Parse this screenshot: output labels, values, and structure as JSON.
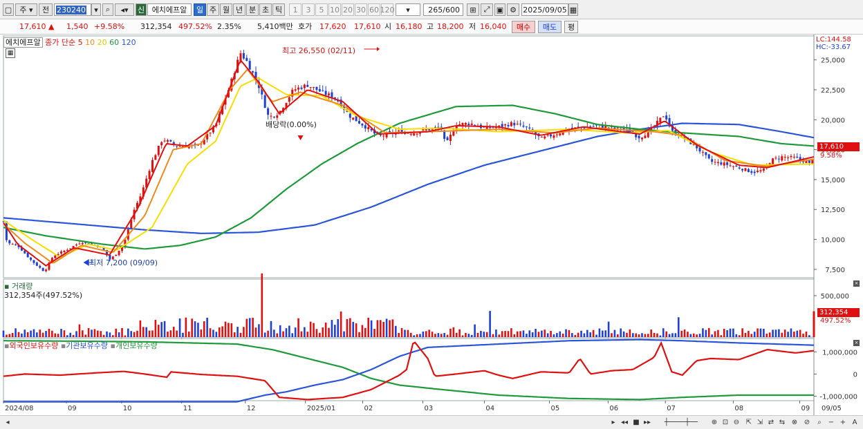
{
  "toolbar": {
    "market_tab": "주",
    "prev_tab": "전",
    "stock_code": "230240",
    "stock_name": "에치에프알",
    "credit_badge": "신",
    "periods": [
      "일",
      "주",
      "월",
      "년",
      "분",
      "초",
      "틱"
    ],
    "active_period": "일",
    "intervals": [
      "1",
      "3",
      "5",
      "10",
      "20",
      "30",
      "60",
      "120"
    ],
    "count": "265",
    "count_total": "/600",
    "date": "2025/09/05"
  },
  "quote": {
    "price": "17,610",
    "change": "1,540",
    "change_pct": "+9.58%",
    "volume": "312,354",
    "volume_ratio": "497.52%",
    "turnover": "2.35%",
    "amount": "5,410백만",
    "hoga_label": "호가",
    "ask": "17,620",
    "bid": "17,610",
    "open_label": "시",
    "open": "16,180",
    "high_label": "고",
    "high": "18,200",
    "low_label": "저",
    "low": "16,040",
    "buy_button": "매수",
    "sell_button": "매도",
    "eval_button": "평"
  },
  "price_panel": {
    "stock_name": "에치에프알",
    "ma_label": "종가 단순",
    "ma_periods": [
      "5",
      "10",
      "20",
      "60",
      "120"
    ],
    "colors": {
      "ma5": "#e01010",
      "ma10": "#f08a1c",
      "ma20": "#f5df00",
      "ma60": "#1f9a3a",
      "ma120": "#2b55d8"
    },
    "lc": "LC:144.58",
    "hc": "HC:-33.67",
    "high_annotation": "최고 26,550 (02/11)",
    "low_annotation": "최저 7,200 (09/09)",
    "dividend_annotation": "배당락(0.00%)",
    "current_price_label": "17,610",
    "current_pct_label": "9.58%",
    "yaxis": [
      "25,000",
      "22,500",
      "20,000",
      "17,500",
      "15,000",
      "12,500",
      "10,000",
      "7,500"
    ]
  },
  "volume_panel": {
    "title": "거래량",
    "value": "312,354주(497.52%)",
    "current_label": "312,354",
    "current_pct": "497.52%",
    "yaxis": [
      "500,000",
      "0"
    ]
  },
  "holding_panel": {
    "series": [
      {
        "name": "외국인보유수량",
        "color": "#e01010"
      },
      {
        "name": "기관보유수량",
        "color": "#2b55d8"
      },
      {
        "name": "개인보유수량",
        "color": "#1f9a3a"
      }
    ],
    "yaxis": [
      "1,000,000",
      "0",
      "-1,000,000"
    ]
  },
  "xaxis": [
    "2024/08",
    "09",
    "10",
    "11",
    "12",
    "2025/01",
    "02",
    "03",
    "04",
    "05",
    "06",
    "07",
    "08",
    "09",
    "09/05"
  ],
  "chart_data": {
    "type": "candlestick",
    "price": {
      "ylim": [
        6800,
        27000
      ],
      "keypoints": [
        [
          0,
          11500
        ],
        [
          5,
          9700
        ],
        [
          20,
          9500
        ],
        [
          40,
          8200
        ],
        [
          58,
          7300
        ],
        [
          70,
          8600
        ],
        [
          95,
          9300
        ],
        [
          110,
          9800
        ],
        [
          125,
          9600
        ],
        [
          140,
          9300
        ],
        [
          150,
          8300
        ],
        [
          158,
          8700
        ],
        [
          170,
          9600
        ],
        [
          185,
          12500
        ],
        [
          195,
          13800
        ],
        [
          210,
          16500
        ],
        [
          225,
          18400
        ],
        [
          245,
          17800
        ],
        [
          275,
          17800
        ],
        [
          300,
          19500
        ],
        [
          320,
          22800
        ],
        [
          335,
          25600
        ],
        [
          345,
          24800
        ],
        [
          360,
          23000
        ],
        [
          375,
          20200
        ],
        [
          390,
          20600
        ],
        [
          410,
          22500
        ],
        [
          430,
          22900
        ],
        [
          450,
          22300
        ],
        [
          470,
          21800
        ],
        [
          490,
          20300
        ],
        [
          510,
          19500
        ],
        [
          530,
          18600
        ],
        [
          560,
          19000
        ],
        [
          580,
          18900
        ],
        [
          600,
          19200
        ],
        [
          620,
          19300
        ],
        [
          625,
          17800
        ],
        [
          640,
          19600
        ],
        [
          660,
          19700
        ],
        [
          680,
          19300
        ],
        [
          700,
          19400
        ],
        [
          720,
          19700
        ],
        [
          740,
          19300
        ],
        [
          760,
          18400
        ],
        [
          780,
          18800
        ],
        [
          800,
          19200
        ],
        [
          820,
          19400
        ],
        [
          840,
          19500
        ],
        [
          860,
          19300
        ],
        [
          880,
          19200
        ],
        [
          900,
          18500
        ],
        [
          920,
          19400
        ],
        [
          935,
          20500
        ],
        [
          945,
          19000
        ],
        [
          960,
          18600
        ],
        [
          980,
          17700
        ],
        [
          1000,
          16500
        ],
        [
          1020,
          16300
        ],
        [
          1040,
          16000
        ],
        [
          1060,
          15600
        ],
        [
          1075,
          15800
        ],
        [
          1085,
          16600
        ],
        [
          1100,
          16900
        ],
        [
          1120,
          16800
        ],
        [
          1135,
          16500
        ],
        [
          1142,
          16200
        ],
        [
          1146,
          17610
        ]
      ],
      "ma5_keypoints": [
        [
          0,
          11400
        ],
        [
          20,
          9600
        ],
        [
          60,
          7800
        ],
        [
          100,
          9300
        ],
        [
          150,
          8700
        ],
        [
          190,
          12600
        ],
        [
          230,
          18000
        ],
        [
          260,
          17800
        ],
        [
          300,
          19500
        ],
        [
          335,
          25000
        ],
        [
          360,
          23200
        ],
        [
          390,
          20500
        ],
        [
          430,
          22500
        ],
        [
          480,
          21500
        ],
        [
          530,
          18800
        ],
        [
          600,
          19000
        ],
        [
          640,
          19500
        ],
        [
          700,
          19400
        ],
        [
          760,
          18700
        ],
        [
          820,
          19400
        ],
        [
          900,
          18800
        ],
        [
          935,
          19900
        ],
        [
          980,
          17900
        ],
        [
          1040,
          16200
        ],
        [
          1080,
          16000
        ],
        [
          1146,
          16900
        ]
      ],
      "ma10_keypoints": [
        [
          0,
          11300
        ],
        [
          30,
          9700
        ],
        [
          70,
          8000
        ],
        [
          110,
          9500
        ],
        [
          155,
          8900
        ],
        [
          200,
          12000
        ],
        [
          240,
          17500
        ],
        [
          280,
          18000
        ],
        [
          320,
          22500
        ],
        [
          345,
          24200
        ],
        [
          380,
          21500
        ],
        [
          420,
          22300
        ],
        [
          480,
          21200
        ],
        [
          540,
          18900
        ],
        [
          600,
          19000
        ],
        [
          700,
          19200
        ],
        [
          780,
          18900
        ],
        [
          840,
          19300
        ],
        [
          920,
          19000
        ],
        [
          960,
          18700
        ],
        [
          1020,
          16600
        ],
        [
          1080,
          16100
        ],
        [
          1146,
          16700
        ]
      ],
      "ma20_keypoints": [
        [
          0,
          11600
        ],
        [
          40,
          10000
        ],
        [
          80,
          8500
        ],
        [
          120,
          9600
        ],
        [
          160,
          9100
        ],
        [
          210,
          11000
        ],
        [
          260,
          16300
        ],
        [
          300,
          18200
        ],
        [
          335,
          22800
        ],
        [
          360,
          23500
        ],
        [
          400,
          22100
        ],
        [
          450,
          22000
        ],
        [
          500,
          20300
        ],
        [
          560,
          19200
        ],
        [
          620,
          19300
        ],
        [
          700,
          19000
        ],
        [
          800,
          19200
        ],
        [
          880,
          18900
        ],
        [
          940,
          19100
        ],
        [
          1000,
          17300
        ],
        [
          1060,
          16200
        ],
        [
          1146,
          16300
        ]
      ],
      "ma60_keypoints": [
        [
          0,
          11000
        ],
        [
          60,
          10300
        ],
        [
          140,
          9600
        ],
        [
          200,
          9200
        ],
        [
          250,
          9500
        ],
        [
          300,
          10200
        ],
        [
          350,
          11800
        ],
        [
          400,
          14200
        ],
        [
          450,
          16300
        ],
        [
          500,
          18000
        ],
        [
          560,
          19700
        ],
        [
          640,
          21100
        ],
        [
          720,
          21200
        ],
        [
          780,
          20500
        ],
        [
          840,
          19600
        ],
        [
          900,
          19200
        ],
        [
          960,
          18900
        ],
        [
          1040,
          18600
        ],
        [
          1100,
          18000
        ],
        [
          1146,
          17800
        ]
      ],
      "ma120_keypoints": [
        [
          0,
          11800
        ],
        [
          100,
          11300
        ],
        [
          200,
          10800
        ],
        [
          280,
          10500
        ],
        [
          360,
          10600
        ],
        [
          440,
          11200
        ],
        [
          520,
          12700
        ],
        [
          600,
          14600
        ],
        [
          680,
          16200
        ],
        [
          760,
          17400
        ],
        [
          840,
          18600
        ],
        [
          900,
          19200
        ],
        [
          960,
          19700
        ],
        [
          1040,
          19600
        ],
        [
          1100,
          19000
        ],
        [
          1146,
          18500
        ]
      ]
    },
    "volume": {
      "ylim": [
        0,
        700000
      ],
      "last": 312354
    },
    "holdings": {
      "ylim": [
        -1200000,
        1600000
      ],
      "foreign_keypoints": [
        [
          0,
          -100000
        ],
        [
          30,
          0
        ],
        [
          80,
          -50000
        ],
        [
          130,
          50000
        ],
        [
          170,
          120000
        ],
        [
          200,
          0
        ],
        [
          232,
          -150000
        ],
        [
          236,
          100000
        ],
        [
          280,
          -20000
        ],
        [
          330,
          -100000
        ],
        [
          370,
          -300000
        ],
        [
          390,
          -1050000
        ],
        [
          430,
          -1150000
        ],
        [
          480,
          -1050000
        ],
        [
          520,
          -700000
        ],
        [
          560,
          -50000
        ],
        [
          570,
          200000
        ],
        [
          580,
          1500000
        ],
        [
          600,
          700000
        ],
        [
          610,
          -100000
        ],
        [
          640,
          0
        ],
        [
          680,
          150000
        ],
        [
          700,
          -50000
        ],
        [
          720,
          -200000
        ],
        [
          760,
          100000
        ],
        [
          800,
          50000
        ],
        [
          815,
          700000
        ],
        [
          830,
          0
        ],
        [
          860,
          150000
        ],
        [
          890,
          200000
        ],
        [
          920,
          750000
        ],
        [
          930,
          1400000
        ],
        [
          945,
          100000
        ],
        [
          960,
          -50000
        ],
        [
          980,
          600000
        ],
        [
          1000,
          700000
        ],
        [
          1040,
          650000
        ],
        [
          1080,
          1100000
        ],
        [
          1120,
          950000
        ],
        [
          1146,
          1050000
        ]
      ],
      "institution_keypoints": [
        [
          0,
          -1250000
        ],
        [
          200,
          -1250000
        ],
        [
          330,
          -1250000
        ],
        [
          370,
          -950000
        ],
        [
          400,
          -800000
        ],
        [
          440,
          -500000
        ],
        [
          480,
          -250000
        ],
        [
          520,
          200000
        ],
        [
          560,
          800000
        ],
        [
          600,
          1200000
        ],
        [
          700,
          1350000
        ],
        [
          800,
          1500000
        ],
        [
          900,
          1550000
        ],
        [
          960,
          1500000
        ],
        [
          1040,
          1400000
        ],
        [
          1146,
          1300000
        ]
      ],
      "individual_keypoints": [
        [
          0,
          1500000
        ],
        [
          100,
          1480000
        ],
        [
          200,
          1450000
        ],
        [
          330,
          1350000
        ],
        [
          380,
          1100000
        ],
        [
          430,
          700000
        ],
        [
          480,
          300000
        ],
        [
          520,
          -200000
        ],
        [
          560,
          -500000
        ],
        [
          620,
          -700000
        ],
        [
          700,
          -950000
        ],
        [
          800,
          -1100000
        ],
        [
          900,
          -1150000
        ],
        [
          960,
          -1050000
        ],
        [
          1040,
          -950000
        ],
        [
          1146,
          -950000
        ]
      ]
    }
  }
}
